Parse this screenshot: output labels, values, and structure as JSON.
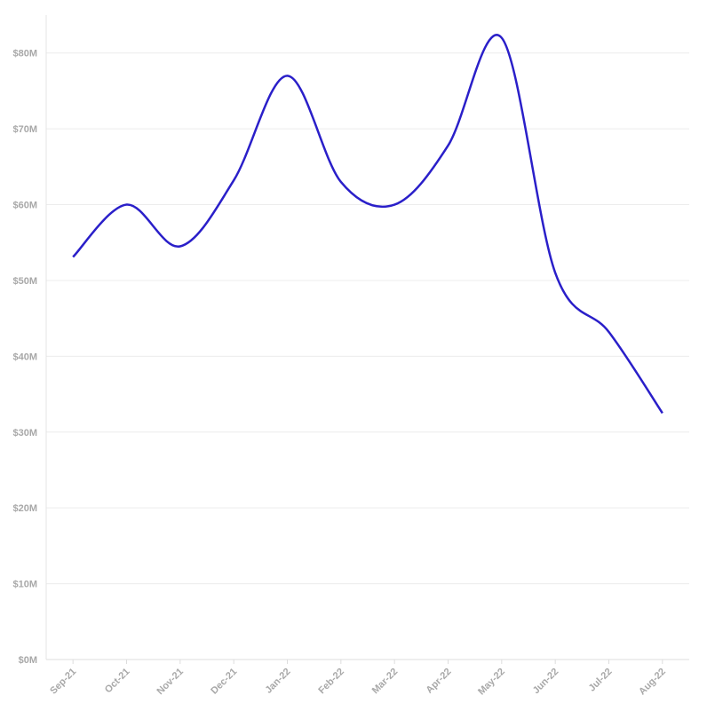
{
  "chart_data": {
    "type": "line",
    "categories": [
      "Sep-21",
      "Oct-21",
      "Nov-21",
      "Dec-21",
      "Jan-22",
      "Feb-22",
      "Mar-22",
      "Apr-22",
      "May-22",
      "Jun-22",
      "Jul-22",
      "Aug-22"
    ],
    "series": [
      {
        "color": "#2a1fc9",
        "values": [
          53100000,
          60000000,
          54500000,
          63200000,
          77000000,
          63000000,
          60000000,
          67800000,
          82000000,
          51000000,
          43200000,
          32500000
        ]
      }
    ],
    "ylim": [
      0,
      85000000
    ],
    "yticks": [
      {
        "value": 0,
        "label": "$0M"
      },
      {
        "value": 10000000,
        "label": "$10M"
      },
      {
        "value": 20000000,
        "label": "$20M"
      },
      {
        "value": 30000000,
        "label": "$30M"
      },
      {
        "value": 40000000,
        "label": "$40M"
      },
      {
        "value": 50000000,
        "label": "$50M"
      },
      {
        "value": 60000000,
        "label": "$60M"
      },
      {
        "value": 70000000,
        "label": "$70M"
      },
      {
        "value": 80000000,
        "label": "$80M"
      }
    ],
    "grid": true
  }
}
